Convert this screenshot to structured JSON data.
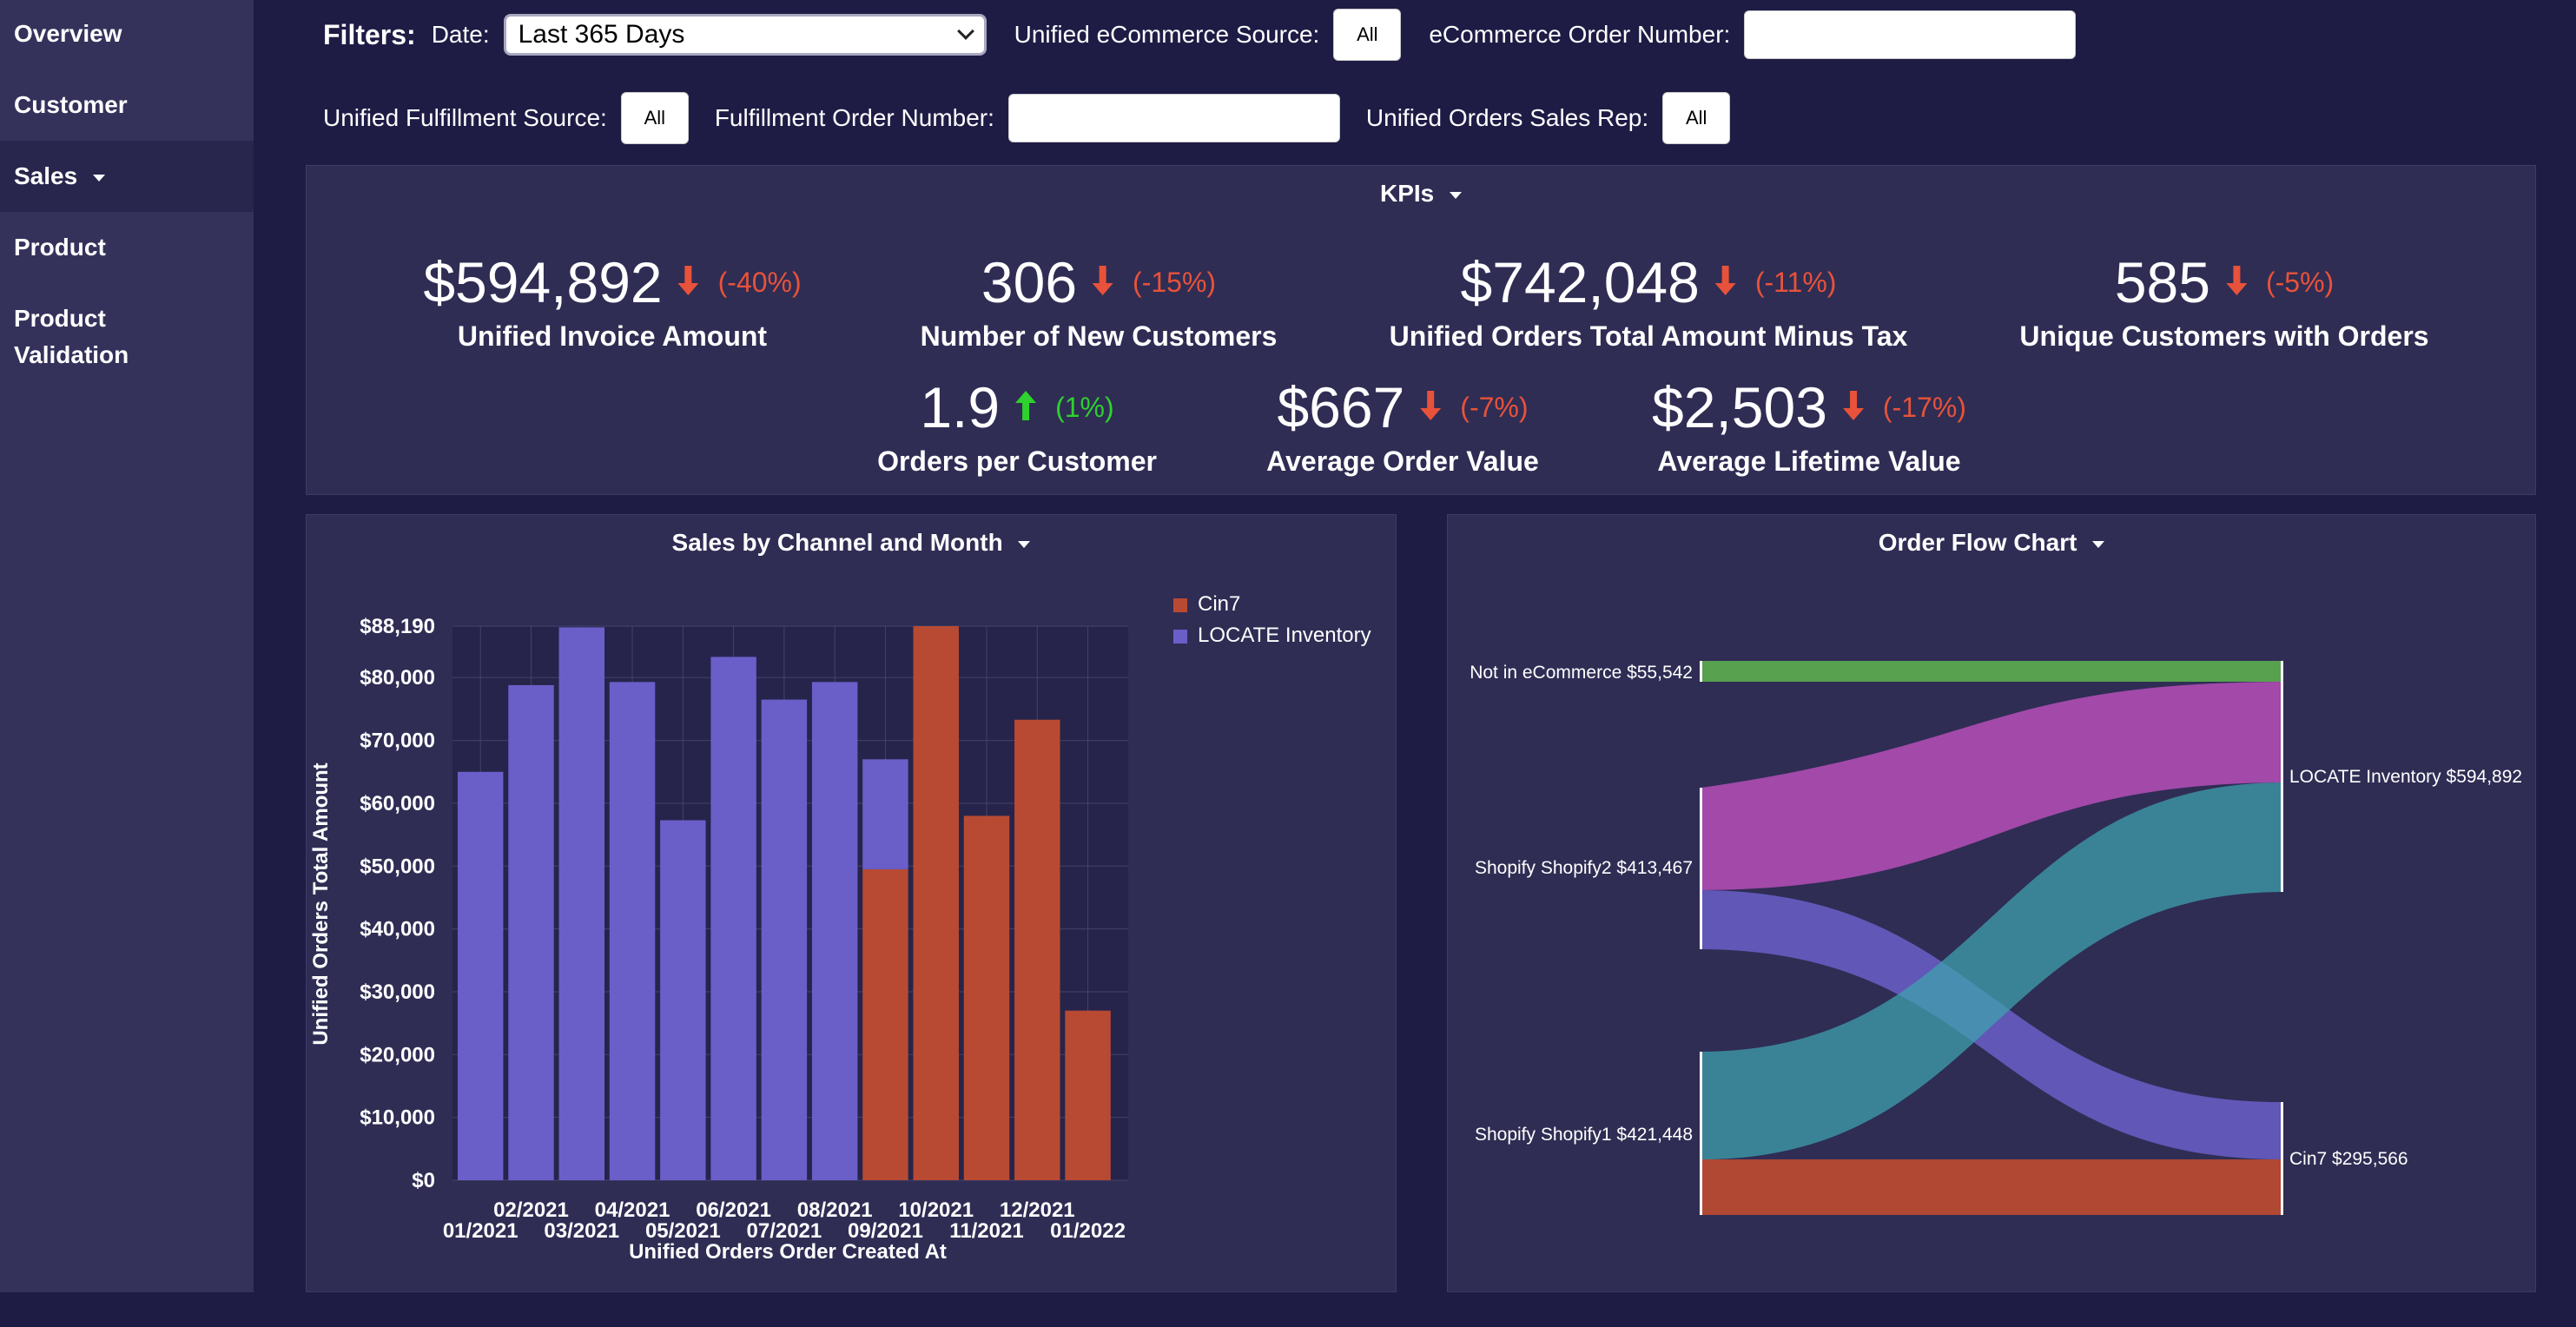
{
  "sidebar": {
    "items": [
      {
        "label": "Overview"
      },
      {
        "label": "Customer"
      },
      {
        "label": "Sales"
      },
      {
        "label": "Product"
      },
      {
        "label": "Product"
      },
      {
        "label": "Validation"
      }
    ]
  },
  "filters": {
    "title": "Filters:",
    "date_label": "Date:",
    "date_value": "Last 365 Days",
    "ecommerce_source_label": "Unified eCommerce Source:",
    "ecommerce_source_value": "All",
    "ecommerce_order_label": "eCommerce Order Number:",
    "fulfillment_source_label": "Unified Fulfillment Source:",
    "fulfillment_source_value": "All",
    "fulfillment_order_label": "Fulfillment Order Number:",
    "sales_rep_label": "Unified Orders Sales Rep:",
    "sales_rep_value": "All"
  },
  "kpis": {
    "title": "KPIs",
    "items": [
      {
        "value": "$594,892",
        "change": "(-40%)",
        "direction": "down",
        "label": "Unified Invoice Amount"
      },
      {
        "value": "306",
        "change": "(-15%)",
        "direction": "down",
        "label": "Number of New Customers"
      },
      {
        "value": "$742,048",
        "change": "(-11%)",
        "direction": "down",
        "label": "Unified Orders Total Amount Minus Tax"
      },
      {
        "value": "585",
        "change": "(-5%)",
        "direction": "down",
        "label": "Unique Customers with Orders"
      },
      {
        "value": "1.9",
        "change": "(1%)",
        "direction": "up",
        "label": "Orders per Customer"
      },
      {
        "value": "$667",
        "change": "(-7%)",
        "direction": "down",
        "label": "Average Order Value"
      },
      {
        "value": "$2,503",
        "change": "(-17%)",
        "direction": "down",
        "label": "Average Lifetime Value"
      }
    ],
    "colors": {
      "down": "#e8523a",
      "up": "#2ed12e"
    }
  },
  "sales_chart": {
    "title": "Sales by Channel and Month",
    "colors": {
      "Cin7": "#b84a33",
      "LOCATE Inventory": "#6a5fc9"
    },
    "chart_data": {
      "type": "bar",
      "stacked": true,
      "title": "Sales by Channel and Month",
      "xlabel": "Unified Orders Order Created At",
      "ylabel": "Unified Orders Total Amount",
      "ylim": [
        0,
        88190
      ],
      "ytick_labels": [
        "$0",
        "$10,000",
        "$20,000",
        "$30,000",
        "$40,000",
        "$50,000",
        "$60,000",
        "$70,000",
        "$80,000",
        "$88,190"
      ],
      "yticks": [
        0,
        10000,
        20000,
        30000,
        40000,
        50000,
        60000,
        70000,
        80000,
        88190
      ],
      "categories": [
        "01/2021",
        "02/2021",
        "03/2021",
        "04/2021",
        "05/2021",
        "06/2021",
        "07/2021",
        "08/2021",
        "09/2021",
        "10/2021",
        "11/2021",
        "12/2021",
        "01/2022"
      ],
      "legend_position": "top-right",
      "grid": true,
      "series": [
        {
          "name": "Cin7",
          "values": [
            0,
            0,
            0,
            0,
            0,
            0,
            0,
            0,
            49500,
            88190,
            58000,
            73300,
            27000
          ]
        },
        {
          "name": "LOCATE Inventory",
          "values": [
            65000,
            78800,
            88000,
            79300,
            57300,
            83300,
            76500,
            79300,
            17500,
            0,
            0,
            0,
            0
          ]
        }
      ]
    }
  },
  "flow_chart": {
    "title": "Order Flow Chart",
    "nodes": {
      "not_ecommerce": "Not in eCommerce $55,542",
      "shopify2": "Shopify Shopify2 $413,467",
      "shopify1": "Shopify Shopify1 $421,448",
      "locate": "LOCATE Inventory $594,892",
      "cin7": "Cin7 $295,566"
    },
    "colors": {
      "green": "#5aa84f",
      "magenta": "#b64fb8",
      "purple": "#6a5fc9",
      "teal": "#3fa0ad",
      "red": "#b84a33"
    }
  }
}
